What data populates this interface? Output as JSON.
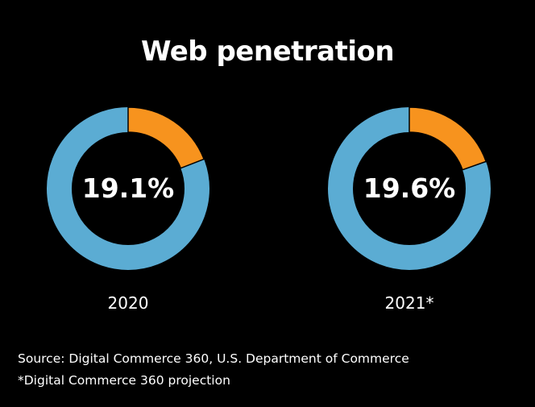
{
  "chart_data": {
    "type": "pie",
    "variant": "donut",
    "title": "Web penetration",
    "charts": [
      {
        "category": "2020",
        "value": 19.1,
        "center_label": "19.1%"
      },
      {
        "category": "2021*",
        "value": 19.6,
        "center_label": "19.6%"
      }
    ],
    "colors": {
      "value": "#F7931E",
      "remainder": "#5BACD3",
      "background": "#000000"
    },
    "source": "Source: Digital Commerce 360, U.S. Department of Commerce",
    "note": "*Digital Commerce 360 projection"
  }
}
